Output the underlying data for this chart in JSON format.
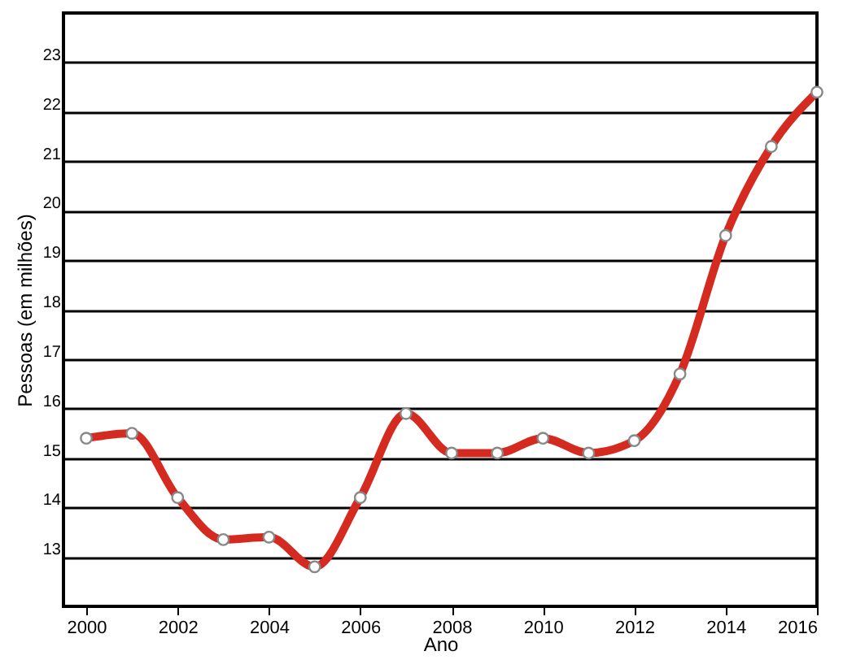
{
  "chart_data": {
    "type": "line",
    "xlabel": "Ano",
    "ylabel": "Pessoas (em milhões)",
    "x": [
      2000,
      2001,
      2002,
      2003,
      2004,
      2005,
      2006,
      2007,
      2008,
      2009,
      2010,
      2011,
      2012,
      2013,
      2014,
      2015,
      2016
    ],
    "series": [
      {
        "color": "#d42a20",
        "values": [
          15.4,
          15.5,
          14.2,
          13.35,
          13.4,
          12.8,
          14.2,
          15.9,
          15.1,
          15.1,
          15.4,
          15.1,
          15.35,
          16.7,
          19.5,
          21.3,
          22.4
        ]
      }
    ],
    "xlim": [
      1999.5,
      2016
    ],
    "xticks": [
      2000,
      2002,
      2004,
      2006,
      2008,
      2010,
      2012,
      2014,
      2016
    ],
    "ylim": [
      12,
      24
    ],
    "yticks": [
      13,
      14,
      15,
      16,
      17,
      18,
      19,
      20,
      21,
      22,
      23
    ],
    "grid": "y",
    "marker": "circle",
    "line_style": "solid"
  }
}
